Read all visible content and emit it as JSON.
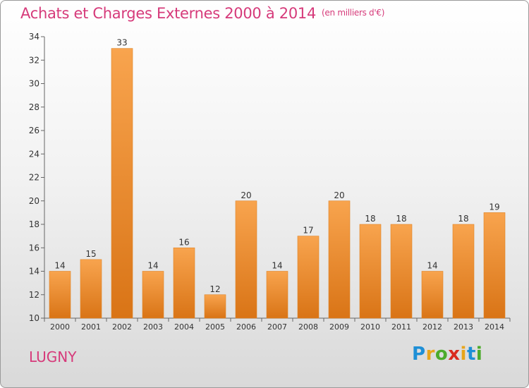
{
  "header": {
    "title": "Achats et Charges Externes 2000 à 2014",
    "subtitle": "(en milliers d'€)"
  },
  "footer": {
    "commune": "LUGNY",
    "logo_letters": [
      "P",
      "r",
      "o",
      "x",
      "i",
      "t",
      "i"
    ]
  },
  "colors": {
    "title": "#d63a7a",
    "bar_top": "#f8a44e",
    "bar_bottom": "#d97416",
    "logo": [
      "#1e8fd6",
      "#e8a51b",
      "#4cab2b",
      "#d92a1f",
      "#e8a51b",
      "#1e8fd6",
      "#4cab2b"
    ]
  },
  "chart_data": {
    "type": "bar",
    "categories": [
      "2000",
      "2001",
      "2002",
      "2003",
      "2004",
      "2005",
      "2006",
      "2007",
      "2008",
      "2009",
      "2010",
      "2011",
      "2012",
      "2013",
      "2014"
    ],
    "values": [
      14,
      15,
      33,
      14,
      16,
      12,
      20,
      14,
      17,
      20,
      18,
      18,
      14,
      18,
      19
    ],
    "data_labels": [
      "14",
      "15",
      "33",
      "14",
      "16",
      "12",
      "20",
      "14",
      "17",
      "20",
      "18",
      "18",
      "14",
      "18",
      "19"
    ],
    "ylim": [
      10,
      34
    ],
    "yticks": [
      "10",
      "12",
      "14",
      "16",
      "18",
      "20",
      "22",
      "24",
      "26",
      "28",
      "30",
      "32",
      "34"
    ],
    "grid": false,
    "legend": "none"
  }
}
